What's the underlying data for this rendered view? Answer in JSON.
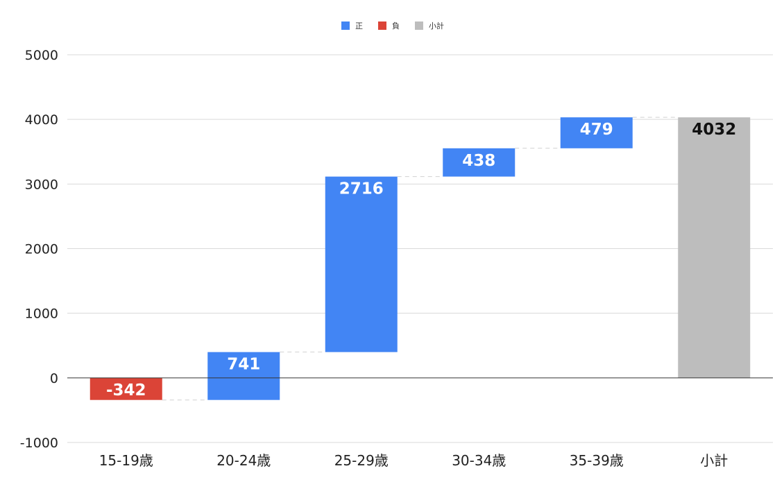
{
  "chart_data": {
    "type": "bar",
    "subtype": "waterfall",
    "categories": [
      "15-19歳",
      "20-24歳",
      "25-29歳",
      "30-34歳",
      "35-39歳",
      "小計"
    ],
    "values": [
      -342,
      741,
      2716,
      438,
      479,
      4032
    ],
    "kinds": [
      "negative",
      "positive",
      "positive",
      "positive",
      "positive",
      "subtotal"
    ],
    "data_labels": [
      "-342",
      "741",
      "2716",
      "438",
      "479",
      "4032"
    ],
    "legend": [
      {
        "key": "positive",
        "label": "正",
        "color": "#4285f4"
      },
      {
        "key": "negative",
        "label": "負",
        "color": "#db4437"
      },
      {
        "key": "subtotal",
        "label": "小計",
        "color": "#bdbdbd"
      }
    ],
    "legend_position": "top",
    "ylim": [
      -1000,
      5000
    ],
    "yticks": [
      5000,
      4000,
      3000,
      2000,
      1000,
      0,
      -1000
    ],
    "grid": true,
    "connectors": true,
    "title": "",
    "xlabel": "",
    "ylabel": ""
  }
}
